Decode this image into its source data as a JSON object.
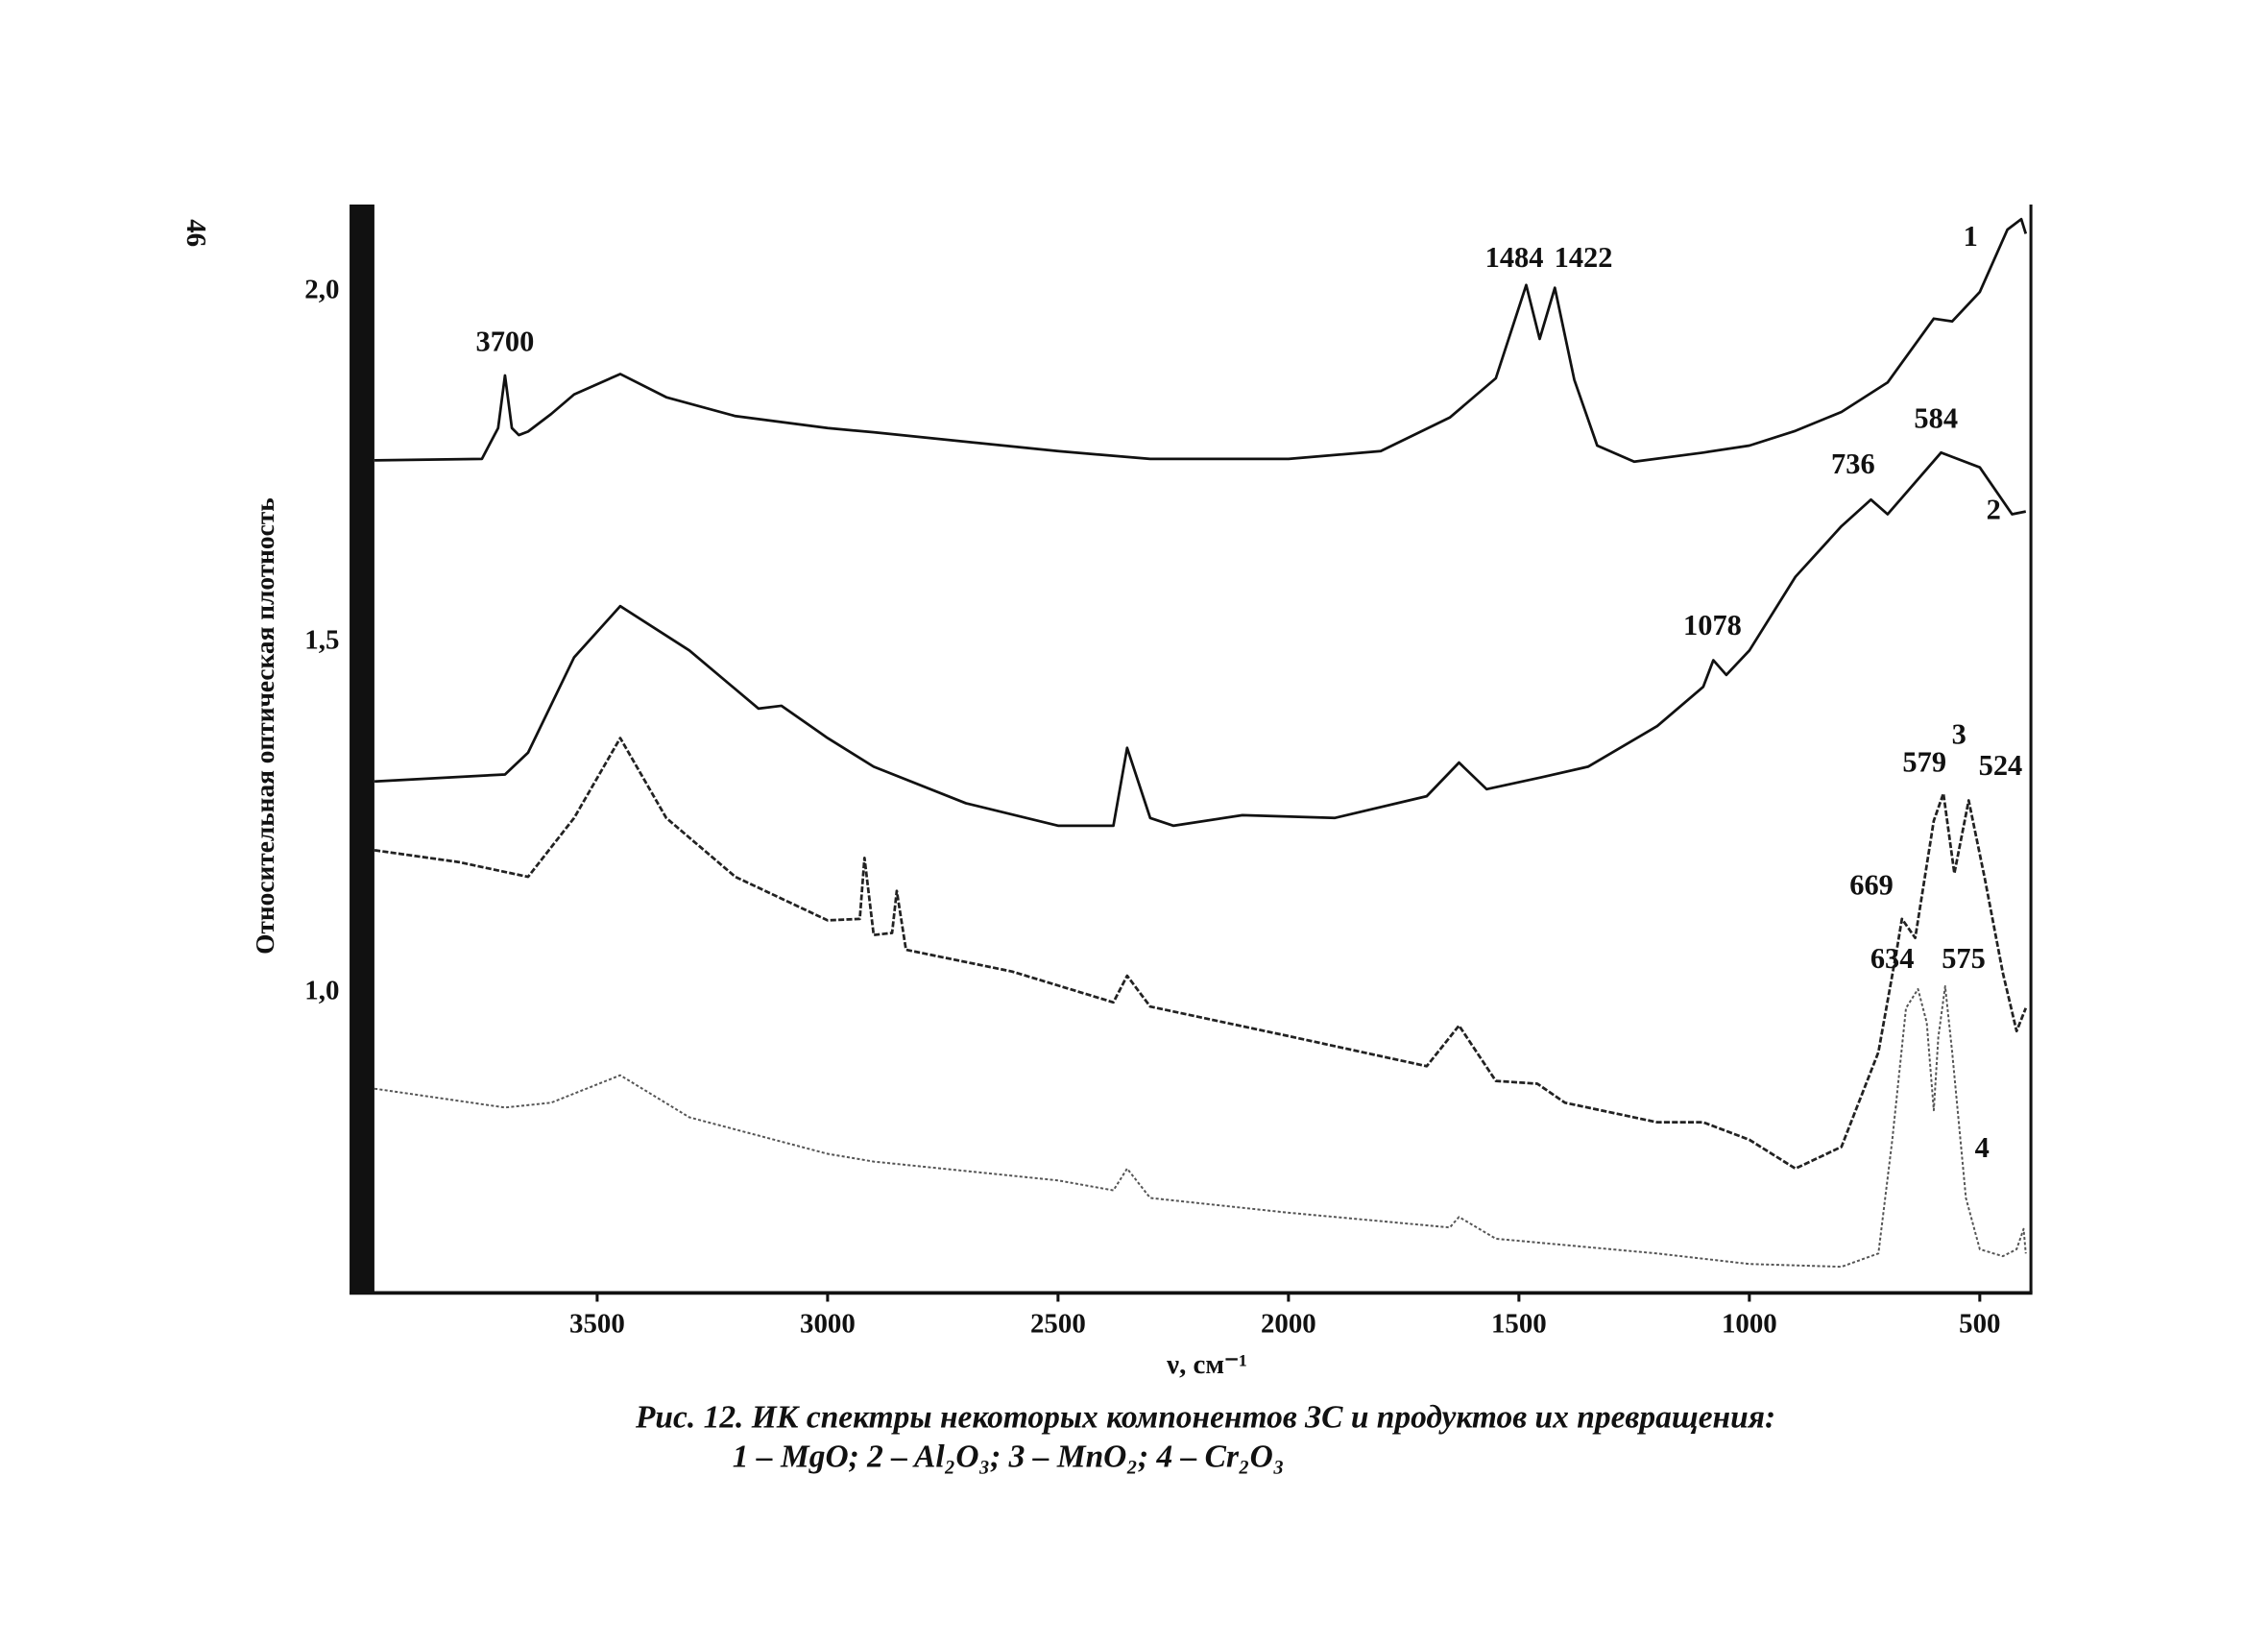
{
  "page_number": "46",
  "chart_data": {
    "type": "line",
    "title": "",
    "xlabel": "ν, см⁻¹",
    "ylabel": "Относительная оптическая плотность",
    "xlim": [
      4000,
      400
    ],
    "ylim": [
      0.56,
      2.12
    ],
    "x_ticks": [
      3500,
      3000,
      2500,
      2000,
      1500,
      1000,
      500
    ],
    "x_tick_labels": [
      "3500",
      "3000",
      "2500",
      "2000",
      "1500",
      "1000",
      "500"
    ],
    "y_ticks": [
      1.0,
      1.5,
      2.0
    ],
    "y_tick_labels": [
      "1,0",
      "1,5",
      "2,0"
    ],
    "grid": false,
    "series": [
      {
        "name": "1",
        "compound": "MgO",
        "style": "solid",
        "color": "#111111",
        "points": [
          [
            3983,
            1.754
          ],
          [
            3750,
            1.756
          ],
          [
            3715,
            1.8
          ],
          [
            3700,
            1.875
          ],
          [
            3685,
            1.8
          ],
          [
            3670,
            1.79
          ],
          [
            3650,
            1.795
          ],
          [
            3600,
            1.82
          ],
          [
            3550,
            1.848
          ],
          [
            3450,
            1.877
          ],
          [
            3350,
            1.844
          ],
          [
            3200,
            1.817
          ],
          [
            3000,
            1.8
          ],
          [
            2900,
            1.794
          ],
          [
            2500,
            1.767
          ],
          [
            2300,
            1.756
          ],
          [
            2000,
            1.756
          ],
          [
            1800,
            1.767
          ],
          [
            1650,
            1.815
          ],
          [
            1550,
            1.871
          ],
          [
            1484,
            2.004
          ],
          [
            1455,
            1.927
          ],
          [
            1422,
            2.0
          ],
          [
            1380,
            1.869
          ],
          [
            1330,
            1.775
          ],
          [
            1250,
            1.752
          ],
          [
            1100,
            1.765
          ],
          [
            1000,
            1.775
          ],
          [
            900,
            1.796
          ],
          [
            800,
            1.823
          ],
          [
            700,
            1.865
          ],
          [
            600,
            1.956
          ],
          [
            560,
            1.952
          ],
          [
            500,
            1.994
          ],
          [
            440,
            2.083
          ],
          [
            410,
            2.098
          ],
          [
            400,
            2.077
          ]
        ]
      },
      {
        "name": "2",
        "compound": "Al2O3",
        "style": "solid",
        "color": "#111111",
        "points": [
          [
            3983,
            1.296
          ],
          [
            3700,
            1.306
          ],
          [
            3650,
            1.337
          ],
          [
            3550,
            1.473
          ],
          [
            3450,
            1.546
          ],
          [
            3300,
            1.483
          ],
          [
            3150,
            1.4
          ],
          [
            3100,
            1.404
          ],
          [
            3000,
            1.358
          ],
          [
            2900,
            1.317
          ],
          [
            2700,
            1.265
          ],
          [
            2500,
            1.233
          ],
          [
            2380,
            1.233
          ],
          [
            2350,
            1.344
          ],
          [
            2300,
            1.244
          ],
          [
            2250,
            1.233
          ],
          [
            2100,
            1.248
          ],
          [
            1900,
            1.244
          ],
          [
            1700,
            1.275
          ],
          [
            1630,
            1.323
          ],
          [
            1570,
            1.285
          ],
          [
            1450,
            1.302
          ],
          [
            1350,
            1.317
          ],
          [
            1200,
            1.375
          ],
          [
            1100,
            1.431
          ],
          [
            1078,
            1.469
          ],
          [
            1050,
            1.448
          ],
          [
            1000,
            1.483
          ],
          [
            900,
            1.588
          ],
          [
            800,
            1.66
          ],
          [
            736,
            1.698
          ],
          [
            700,
            1.677
          ],
          [
            584,
            1.765
          ],
          [
            500,
            1.744
          ],
          [
            430,
            1.677
          ],
          [
            400,
            1.681
          ]
        ]
      },
      {
        "name": "3",
        "compound": "MnO2",
        "style": "dashed",
        "color": "#222222",
        "points": [
          [
            3983,
            1.198
          ],
          [
            3800,
            1.181
          ],
          [
            3650,
            1.16
          ],
          [
            3550,
            1.244
          ],
          [
            3450,
            1.358
          ],
          [
            3350,
            1.244
          ],
          [
            3200,
            1.16
          ],
          [
            3000,
            1.098
          ],
          [
            2930,
            1.1
          ],
          [
            2920,
            1.187
          ],
          [
            2900,
            1.077
          ],
          [
            2860,
            1.08
          ],
          [
            2850,
            1.14
          ],
          [
            2830,
            1.056
          ],
          [
            2600,
            1.025
          ],
          [
            2380,
            0.981
          ],
          [
            2350,
            1.019
          ],
          [
            2300,
            0.975
          ],
          [
            2000,
            0.933
          ],
          [
            1700,
            0.89
          ],
          [
            1630,
            0.948
          ],
          [
            1550,
            0.869
          ],
          [
            1460,
            0.865
          ],
          [
            1400,
            0.838
          ],
          [
            1200,
            0.81
          ],
          [
            1100,
            0.81
          ],
          [
            1000,
            0.785
          ],
          [
            900,
            0.744
          ],
          [
            800,
            0.775
          ],
          [
            720,
            0.91
          ],
          [
            680,
            1.056
          ],
          [
            669,
            1.1
          ],
          [
            640,
            1.073
          ],
          [
            600,
            1.24
          ],
          [
            579,
            1.279
          ],
          [
            555,
            1.165
          ],
          [
            524,
            1.269
          ],
          [
            490,
            1.16
          ],
          [
            450,
            1.023
          ],
          [
            420,
            0.94
          ],
          [
            400,
            0.973
          ]
        ]
      },
      {
        "name": "4",
        "compound": "Cr2O3",
        "style": "dotted",
        "color": "#555555",
        "points": [
          [
            3983,
            0.858
          ],
          [
            3700,
            0.831
          ],
          [
            3600,
            0.838
          ],
          [
            3450,
            0.877
          ],
          [
            3300,
            0.817
          ],
          [
            3000,
            0.765
          ],
          [
            2900,
            0.754
          ],
          [
            2500,
            0.727
          ],
          [
            2380,
            0.713
          ],
          [
            2350,
            0.744
          ],
          [
            2300,
            0.702
          ],
          [
            2000,
            0.681
          ],
          [
            1650,
            0.66
          ],
          [
            1630,
            0.675
          ],
          [
            1550,
            0.644
          ],
          [
            1200,
            0.623
          ],
          [
            1000,
            0.608
          ],
          [
            800,
            0.604
          ],
          [
            720,
            0.623
          ],
          [
            690,
            0.785
          ],
          [
            660,
            0.973
          ],
          [
            634,
            1.0
          ],
          [
            615,
            0.952
          ],
          [
            600,
            0.827
          ],
          [
            590,
            0.931
          ],
          [
            575,
            1.004
          ],
          [
            560,
            0.91
          ],
          [
            530,
            0.702
          ],
          [
            500,
            0.629
          ],
          [
            450,
            0.619
          ],
          [
            420,
            0.629
          ],
          [
            405,
            0.658
          ],
          [
            400,
            0.623
          ]
        ]
      }
    ],
    "annotations": [
      {
        "text": "3700",
        "x": 3700,
        "y": 1.91
      },
      {
        "text": "1484",
        "x": 1510,
        "y": 2.03
      },
      {
        "text": "1422",
        "x": 1360,
        "y": 2.03
      },
      {
        "text": "1078",
        "x": 1080,
        "y": 1.505
      },
      {
        "text": "736",
        "x": 775,
        "y": 1.735
      },
      {
        "text": "584",
        "x": 595,
        "y": 1.8
      },
      {
        "text": "669",
        "x": 735,
        "y": 1.135
      },
      {
        "text": "579",
        "x": 620,
        "y": 1.31
      },
      {
        "text": "524",
        "x": 455,
        "y": 1.305
      },
      {
        "text": "634",
        "x": 690,
        "y": 1.03
      },
      {
        "text": "575",
        "x": 535,
        "y": 1.03
      },
      {
        "text": "1",
        "x": 520,
        "y": 2.06
      },
      {
        "text": "2",
        "x": 470,
        "y": 1.67
      },
      {
        "text": "3",
        "x": 545,
        "y": 1.35
      },
      {
        "text": "4",
        "x": 495,
        "y": 0.76
      }
    ],
    "caption_line1": "Рис. 12. ИК спектры некоторых компонентов ЗС и продуктов их превращения:",
    "caption_line2": "1 – MgO; 2 – Al₂O₃; 3 – MnO₂; 4 – Cr₂O₃"
  }
}
